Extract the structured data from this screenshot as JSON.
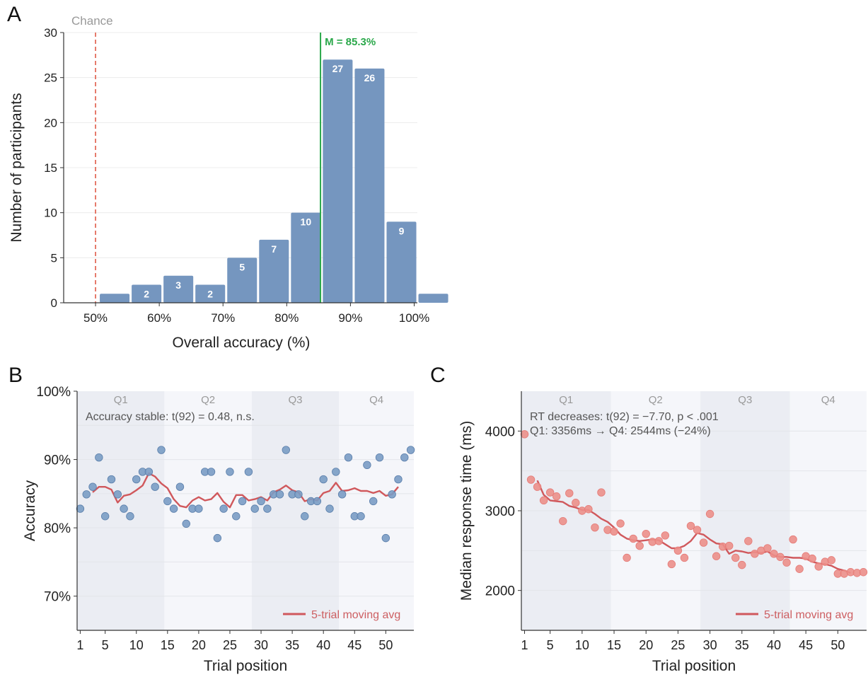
{
  "panels": {
    "a": "A",
    "b": "B",
    "c": "C"
  },
  "colors": {
    "bar": "#7596bf",
    "dot_acc": "#7a9cc4",
    "dot_rt": "#ec8f8a",
    "line": "#d0585c",
    "mean": "#2aa84a",
    "chance": "#e05a47",
    "q_dark": "#ebedf3",
    "q_light": "#f5f6fa"
  },
  "chart_data": [
    {
      "type": "bar",
      "panel": "A",
      "xlabel": "Overall accuracy (%)",
      "ylabel": "Number of participants",
      "x_ticks": [
        "50%",
        "60%",
        "70%",
        "80%",
        "90%",
        "100%"
      ],
      "x_tick_values": [
        50,
        60,
        70,
        80,
        90,
        100
      ],
      "xlim": [
        45,
        100.5
      ],
      "ylim": [
        0,
        30
      ],
      "y_ticks": [
        "0",
        "5",
        "10",
        "15",
        "20",
        "25",
        "30"
      ],
      "bin_width": 5,
      "bins": [
        {
          "x0": 50.5,
          "count": 1
        },
        {
          "x0": 55.5,
          "count": 2
        },
        {
          "x0": 60.5,
          "count": 3
        },
        {
          "x0": 65.5,
          "count": 2
        },
        {
          "x0": 70.5,
          "count": 5
        },
        {
          "x0": 75.5,
          "count": 7
        },
        {
          "x0": 80.5,
          "count": 10
        },
        {
          "x0": 85.5,
          "count": 27
        },
        {
          "x0": 90.5,
          "count": 26
        },
        {
          "x0": 95.5,
          "count": 9
        },
        {
          "x0": 100.5,
          "count": 1
        }
      ],
      "chance_x": 50,
      "chance_label": "Chance",
      "mean_x": 85.3,
      "mean_label": "M = 85.3%"
    },
    {
      "type": "scatter",
      "panel": "B",
      "xlabel": "Trial position",
      "ylabel": "Accuracy",
      "ylim": [
        65,
        100
      ],
      "y_ticks": [
        70,
        80,
        90,
        100
      ],
      "y_tick_labels": [
        "70%",
        "80%",
        "90%",
        "100%"
      ],
      "xlim": [
        0.5,
        54.5
      ],
      "x_ticks": [
        1,
        5,
        10,
        15,
        20,
        25,
        30,
        35,
        40,
        45,
        50
      ],
      "quarters": [
        {
          "label": "Q1",
          "start": 0.5,
          "end": 14.5
        },
        {
          "label": "Q2",
          "start": 14.5,
          "end": 28.5
        },
        {
          "label": "Q3",
          "start": 28.5,
          "end": 42.5
        },
        {
          "label": "Q4",
          "start": 42.5,
          "end": 54.5
        }
      ],
      "annotation": [
        "Accuracy stable: t(92) = 0.48, n.s."
      ],
      "legend": "5-trial moving avg",
      "x": [
        1,
        2,
        3,
        4,
        5,
        6,
        7,
        8,
        9,
        10,
        11,
        12,
        13,
        14,
        15,
        16,
        17,
        18,
        19,
        20,
        21,
        22,
        23,
        24,
        25,
        26,
        27,
        28,
        29,
        30,
        31,
        32,
        33,
        34,
        35,
        36,
        37,
        38,
        39,
        40,
        41,
        42,
        43,
        44,
        45,
        46,
        47,
        48,
        49,
        50,
        51,
        52,
        53,
        54
      ],
      "y": [
        82.8,
        84.9,
        86.0,
        90.3,
        81.7,
        87.1,
        84.9,
        82.8,
        81.7,
        87.1,
        88.2,
        88.2,
        86.0,
        91.4,
        83.9,
        82.8,
        86.0,
        80.6,
        82.8,
        82.8,
        88.2,
        88.2,
        78.5,
        82.8,
        88.2,
        81.7,
        83.9,
        88.2,
        82.8,
        83.9,
        82.8,
        84.9,
        84.9,
        91.4,
        84.9,
        84.9,
        81.7,
        83.9,
        83.9,
        87.1,
        82.8,
        88.2,
        84.9,
        90.3,
        81.7,
        81.7,
        89.2,
        83.9,
        90.3,
        78.5,
        84.9,
        87.1,
        90.3,
        91.4
      ],
      "moving_avg": [
        [
          3,
          85.2
        ],
        [
          4,
          86.0
        ],
        [
          5,
          86.0
        ],
        [
          6,
          85.6
        ],
        [
          7,
          83.7
        ],
        [
          8,
          84.7
        ],
        [
          9,
          84.9
        ],
        [
          10,
          85.5
        ],
        [
          11,
          86.2
        ],
        [
          12,
          88.0
        ],
        [
          13,
          87.5
        ],
        [
          14,
          86.5
        ],
        [
          15,
          85.8
        ],
        [
          16,
          84.2
        ],
        [
          17,
          83.2
        ],
        [
          18,
          83.0
        ],
        [
          19,
          84.0
        ],
        [
          20,
          84.5
        ],
        [
          21,
          84.0
        ],
        [
          22,
          84.2
        ],
        [
          23,
          85.1
        ],
        [
          24,
          83.8
        ],
        [
          25,
          83.0
        ],
        [
          26,
          84.8
        ],
        [
          27,
          84.8
        ],
        [
          28,
          84.0
        ],
        [
          29,
          84.2
        ],
        [
          30,
          84.5
        ],
        [
          31,
          84.0
        ],
        [
          32,
          85.2
        ],
        [
          33,
          85.6
        ],
        [
          34,
          86.2
        ],
        [
          35,
          85.5
        ],
        [
          36,
          85.2
        ],
        [
          37,
          83.9
        ],
        [
          38,
          84.2
        ],
        [
          39,
          84.0
        ],
        [
          40,
          85.1
        ],
        [
          41,
          85.4
        ],
        [
          42,
          86.6
        ],
        [
          43,
          85.4
        ],
        [
          44,
          85.5
        ],
        [
          45,
          85.8
        ],
        [
          46,
          85.4
        ],
        [
          47,
          85.4
        ],
        [
          48,
          85.1
        ],
        [
          49,
          85.4
        ],
        [
          50,
          84.7
        ],
        [
          51,
          84.9
        ],
        [
          52,
          86.0
        ]
      ]
    },
    {
      "type": "scatter",
      "panel": "C",
      "xlabel": "Trial position",
      "ylabel": "Median response time (ms)",
      "ylim": [
        1500,
        4500
      ],
      "y_ticks": [
        2000,
        3000,
        4000
      ],
      "y_tick_labels": [
        "2000",
        "3000",
        "4000"
      ],
      "xlim": [
        0.5,
        54.5
      ],
      "x_ticks": [
        1,
        5,
        10,
        15,
        20,
        25,
        30,
        35,
        40,
        45,
        50
      ],
      "quarters": [
        {
          "label": "Q1",
          "start": 0.5,
          "end": 14.5
        },
        {
          "label": "Q2",
          "start": 14.5,
          "end": 28.5
        },
        {
          "label": "Q3",
          "start": 28.5,
          "end": 42.5
        },
        {
          "label": "Q4",
          "start": 42.5,
          "end": 54.5
        }
      ],
      "annotation": [
        "RT decreases: t(92) = −7.70, p < .001",
        "Q1: 3356ms → Q4: 2544ms (−24%)"
      ],
      "legend": "5-trial moving avg",
      "x": [
        1,
        2,
        3,
        4,
        5,
        6,
        7,
        8,
        9,
        10,
        11,
        12,
        13,
        14,
        15,
        16,
        17,
        18,
        19,
        20,
        21,
        22,
        23,
        24,
        25,
        26,
        27,
        28,
        29,
        30,
        31,
        32,
        33,
        34,
        35,
        36,
        37,
        38,
        39,
        40,
        41,
        42,
        43,
        44,
        45,
        46,
        47,
        48,
        49,
        50,
        51,
        52,
        53,
        54
      ],
      "y": [
        3960,
        3390,
        3300,
        3130,
        3230,
        3180,
        2870,
        3220,
        3100,
        3000,
        3020,
        2790,
        3230,
        2760,
        2740,
        2840,
        2410,
        2650,
        2560,
        2710,
        2610,
        2620,
        2690,
        2330,
        2500,
        2410,
        2810,
        2760,
        2600,
        2960,
        2430,
        2550,
        2560,
        2410,
        2320,
        2620,
        2460,
        2500,
        2530,
        2460,
        2420,
        2350,
        2640,
        2270,
        2430,
        2400,
        2300,
        2360,
        2380,
        2210,
        2210,
        2230,
        2220,
        2230
      ],
      "moving_avg": [
        [
          3,
          3380
        ],
        [
          4,
          3200
        ],
        [
          5,
          3130
        ],
        [
          6,
          3120
        ],
        [
          7,
          3110
        ],
        [
          8,
          3060
        ],
        [
          9,
          3040
        ],
        [
          10,
          3010
        ],
        [
          11,
          3010
        ],
        [
          12,
          2960
        ],
        [
          13,
          2900
        ],
        [
          14,
          2860
        ],
        [
          15,
          2790
        ],
        [
          16,
          2700
        ],
        [
          17,
          2650
        ],
        [
          18,
          2630
        ],
        [
          19,
          2620
        ],
        [
          20,
          2630
        ],
        [
          21,
          2640
        ],
        [
          22,
          2630
        ],
        [
          23,
          2580
        ],
        [
          24,
          2530
        ],
        [
          25,
          2530
        ],
        [
          26,
          2560
        ],
        [
          27,
          2620
        ],
        [
          28,
          2720
        ],
        [
          29,
          2700
        ],
        [
          30,
          2640
        ],
        [
          31,
          2590
        ],
        [
          32,
          2580
        ],
        [
          33,
          2460
        ],
        [
          34,
          2500
        ],
        [
          35,
          2490
        ],
        [
          36,
          2470
        ],
        [
          37,
          2480
        ],
        [
          38,
          2470
        ],
        [
          39,
          2490
        ],
        [
          40,
          2440
        ],
        [
          41,
          2420
        ],
        [
          42,
          2420
        ],
        [
          43,
          2410
        ],
        [
          44,
          2410
        ],
        [
          45,
          2400
        ],
        [
          46,
          2360
        ],
        [
          47,
          2340
        ],
        [
          48,
          2330
        ],
        [
          49,
          2310
        ],
        [
          50,
          2270
        ],
        [
          51,
          2250
        ],
        [
          52,
          2220
        ]
      ]
    }
  ]
}
